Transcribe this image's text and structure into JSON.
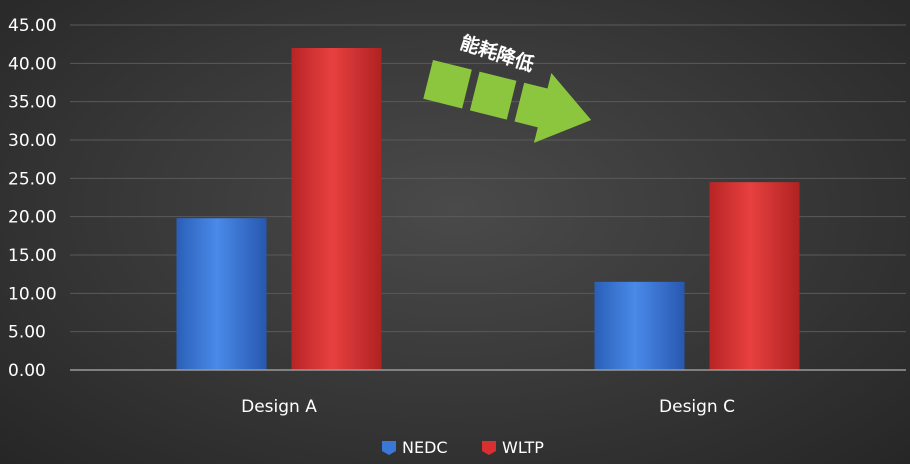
{
  "chart_data": {
    "type": "bar",
    "categories": [
      "Design A",
      "Design C"
    ],
    "series": [
      {
        "name": "NEDC",
        "values": [
          19.8,
          11.5
        ],
        "color": "#3a78d8"
      },
      {
        "name": "WLTP",
        "values": [
          42.0,
          24.5
        ],
        "color": "#d83030"
      }
    ],
    "ylim": [
      0,
      45
    ],
    "yticks": [
      "0.00",
      "5.00",
      "10.00",
      "15.00",
      "20.00",
      "25.00",
      "30.00",
      "35.00",
      "40.00",
      "45.00"
    ],
    "ytick_values": [
      0,
      5,
      10,
      15,
      20,
      25,
      30,
      35,
      40,
      45
    ],
    "title": "",
    "xlabel": "",
    "ylabel": "",
    "grid": true,
    "legend_position": "bottom",
    "annotation": {
      "text": "能耗降低",
      "icon": "green-arrow-icon",
      "color": "#8cc63f"
    }
  }
}
